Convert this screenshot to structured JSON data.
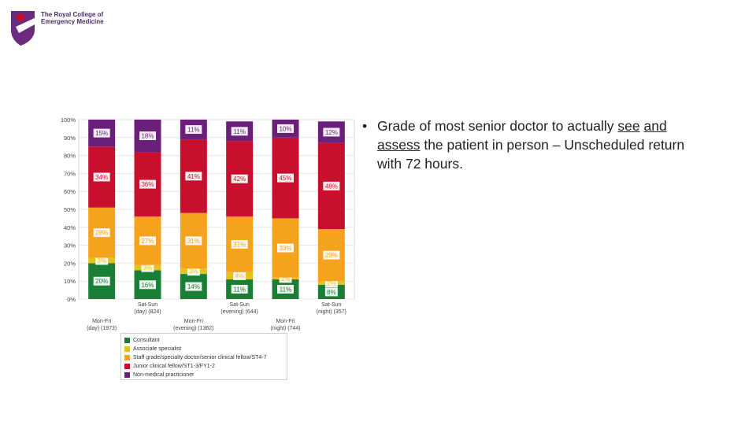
{
  "logo": {
    "line1": "The Royal College of",
    "line2": "Emergency Medicine"
  },
  "bullet": {
    "marker": "•",
    "text_part1": "Grade of most senior doctor to actually ",
    "text_underlined1": "see",
    "text_part2": " ",
    "text_underlined2": "and assess",
    "text_part3": " the patient in person – Unscheduled return with 72 hours."
  },
  "colors": {
    "Consultant": "#1a7f36",
    "Associate specialist": "#e4c21b",
    "Staff grade/specialty doctor/senior clinical fellow/ST4-7": "#f5a21d",
    "Junior clinical fellow/ST1-3/FY1-2": "#c8102e",
    "Non-medical practicioner": "#6a1f7a"
  },
  "chart_data": {
    "type": "bar",
    "stacked": true,
    "categories": [
      "Mon-Fri (day) (1973)",
      "Sat-Sun (day) (824)",
      "Mon-Fri (evening) (1362)",
      "Sat-Sun (evening) (644)",
      "Mon-Fri (night) (744)",
      "Sat-Sun (night) (357)"
    ],
    "category_lines": [
      [
        "Mon-Fri",
        "(day) (1973)"
      ],
      [
        "Sat-Sun",
        "(day) (824)"
      ],
      [
        "Mon-Fri",
        "(evening) (1362)"
      ],
      [
        "Sat-Sun",
        "(evening) (644)"
      ],
      [
        "Mon-Fri",
        "(night) (744)"
      ],
      [
        "Sat-Sun",
        "(night) (357)"
      ]
    ],
    "series": [
      {
        "name": "Consultant",
        "values": [
          20,
          16,
          14,
          11,
          11,
          8
        ]
      },
      {
        "name": "Associate specialist",
        "values": [
          3,
          3,
          3,
          4,
          1,
          2
        ]
      },
      {
        "name": "Staff grade/specialty doctor/senior clinical fellow/ST4-7",
        "values": [
          28,
          27,
          31,
          31,
          33,
          29
        ]
      },
      {
        "name": "Junior clinical fellow/ST1-3/FY1-2",
        "values": [
          34,
          36,
          41,
          42,
          45,
          48
        ]
      },
      {
        "name": "Non-medical practicioner",
        "values": [
          15,
          18,
          11,
          11,
          10,
          12
        ]
      }
    ],
    "yticks": [
      "0%",
      "10%",
      "20%",
      "30%",
      "40%",
      "50%",
      "60%",
      "70%",
      "80%",
      "90%",
      "100%"
    ],
    "ylim": [
      0,
      100
    ],
    "legend_position": "bottom"
  }
}
